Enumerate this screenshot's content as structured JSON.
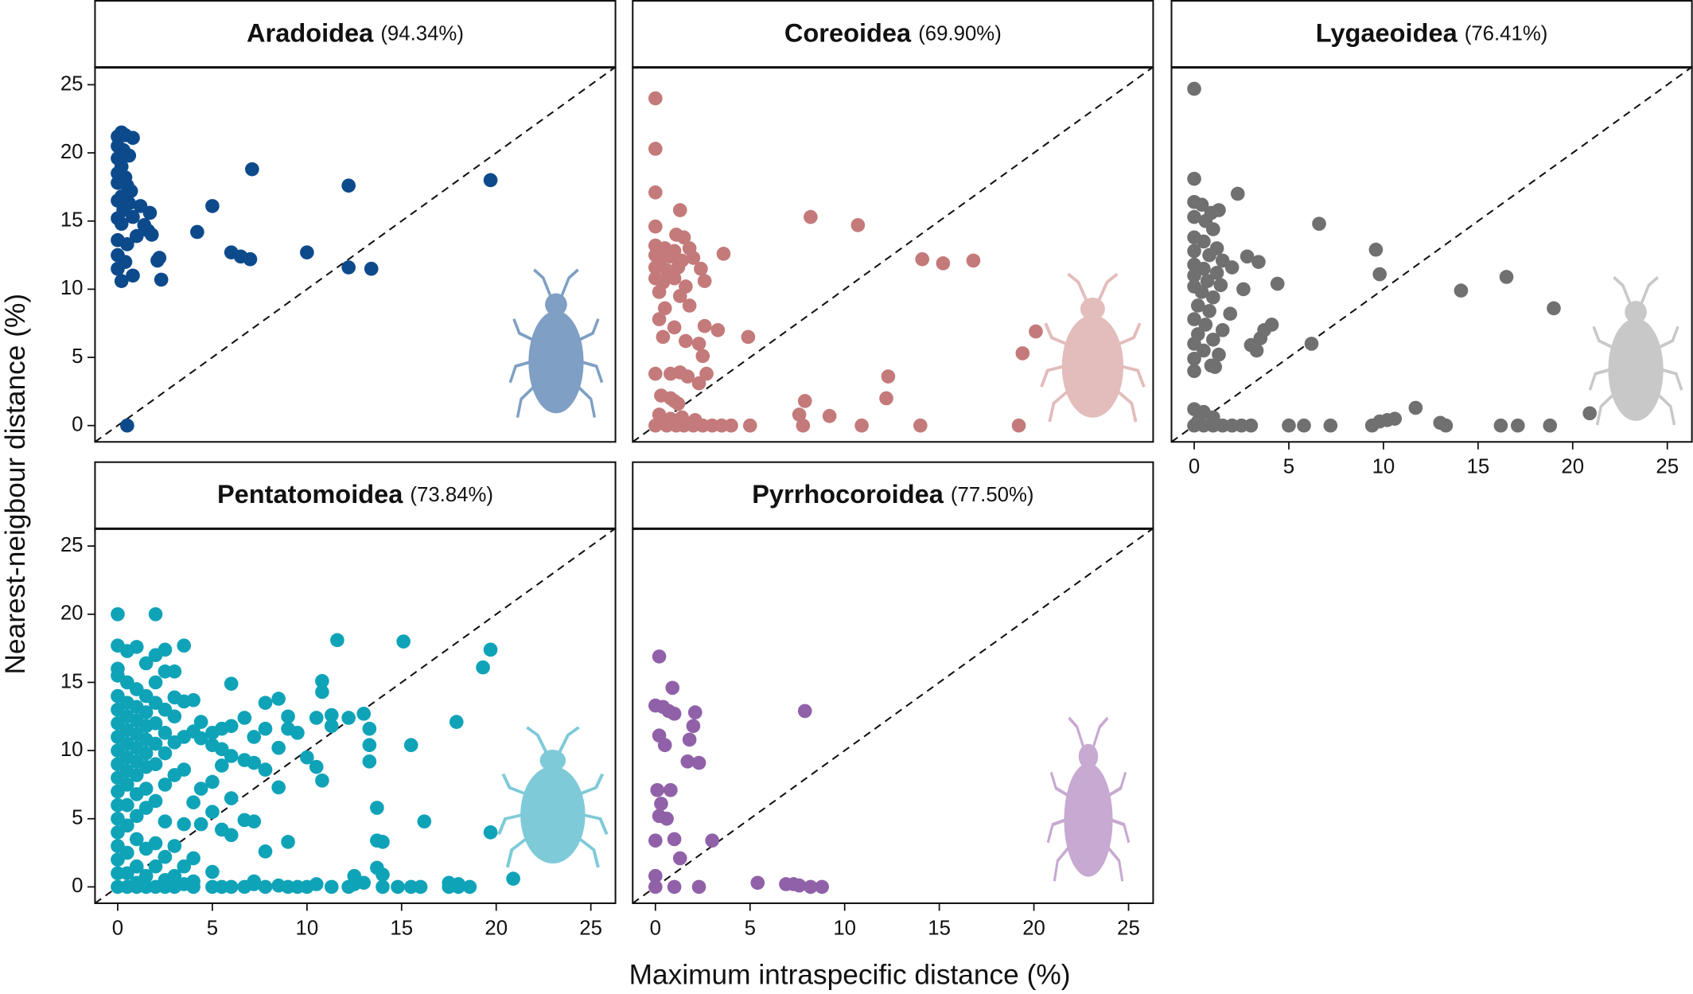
{
  "x_label": "Maximum intraspecific distance (%)",
  "y_label": "Nearest-neigbour distance (%)",
  "chart_data": [
    {
      "type": "scatter",
      "title": "Aradoidea",
      "subtitle": "(94.34%)",
      "color": "#0d4a8c",
      "xlim": [
        -1.2,
        26.3
      ],
      "ylim": [
        -1.2,
        26.3
      ],
      "yticks": [
        0,
        5,
        10,
        15,
        20,
        25
      ],
      "x": [
        0,
        0.2,
        0.4,
        0.8,
        0,
        0.3,
        0,
        0.6,
        0.2,
        0,
        0.4,
        0,
        0.5,
        0.7,
        0.2,
        0,
        0.6,
        1.2,
        0.3,
        1.7,
        0,
        0.8,
        1.4,
        1.6,
        0.2,
        1.0,
        0,
        0.5,
        1.8,
        0,
        0.4,
        2.2,
        2.1,
        0,
        0.8,
        0.2,
        2.3,
        4.2,
        5.0,
        6.0,
        6.5,
        7.0,
        7.1,
        10.0,
        12.2,
        12.2,
        13.4,
        19.7,
        0.5
      ],
      "values": [
        21.2,
        21.5,
        21.3,
        21.1,
        20.5,
        20.2,
        19.6,
        19.8,
        19.0,
        18.5,
        18.2,
        17.8,
        17.6,
        17.2,
        16.8,
        16.5,
        16.3,
        16.1,
        15.8,
        15.6,
        15.2,
        15.3,
        14.7,
        14.3,
        14.8,
        13.9,
        13.6,
        13.3,
        14.0,
        12.5,
        12.0,
        12.3,
        12.1,
        11.5,
        11.0,
        10.6,
        10.7,
        14.2,
        16.1,
        12.7,
        12.4,
        12.2,
        18.8,
        12.7,
        17.6,
        11.6,
        11.5,
        18.0,
        0
      ]
    },
    {
      "type": "scatter",
      "title": "Coreoidea",
      "subtitle": "(69.90%)",
      "color": "#c47a7a",
      "xlim": [
        -1.2,
        26.3
      ],
      "ylim": [
        -1.2,
        26.3
      ],
      "x": [
        0,
        0,
        0,
        1.3,
        0,
        1.1,
        1.5,
        0,
        0.5,
        1.0,
        1.8,
        0,
        0.3,
        0.8,
        1.4,
        2.0,
        3.6,
        0,
        0.6,
        1.2,
        2.4,
        0,
        0.4,
        1.0,
        1.6,
        2.6,
        0.2,
        1.3,
        0.5,
        1.8,
        0.2,
        1.0,
        2.6,
        0.4,
        1.6,
        3.3,
        2.3,
        4.9,
        2.5,
        0,
        0.8,
        1.3,
        1.7,
        2.3,
        2.7,
        0.3,
        0.8,
        1.0,
        1.2,
        0.2,
        0.8,
        1.4,
        2.1,
        0,
        0.6,
        1.1,
        1.5,
        2.0,
        2.5,
        3.0,
        3.5,
        4.0,
        5.0,
        7.6,
        7.9,
        7.8,
        9.2,
        10.9,
        12.2,
        12.3,
        14.0,
        8.2,
        10.7,
        14.1,
        15.2,
        16.8,
        19.4,
        20.1,
        19.2
      ],
      "values": [
        24.0,
        20.3,
        17.1,
        15.8,
        14.6,
        14.0,
        13.8,
        13.2,
        13.0,
        12.8,
        13.0,
        12.5,
        12.2,
        12.4,
        12.1,
        12.3,
        12.6,
        11.6,
        11.4,
        11.6,
        11.5,
        10.8,
        10.5,
        10.8,
        10.2,
        10.6,
        9.8,
        9.5,
        8.6,
        8.8,
        7.8,
        7.2,
        7.3,
        6.5,
        6.2,
        7.0,
        6.0,
        6.5,
        5.1,
        3.8,
        3.8,
        3.9,
        3.6,
        3.1,
        3.8,
        2.2,
        2.0,
        1.8,
        1.6,
        0.8,
        0.5,
        0.6,
        0.4,
        0,
        0,
        0,
        0,
        0,
        0,
        0,
        0,
        0,
        0,
        0.8,
        1.8,
        0,
        0.7,
        0,
        2.0,
        3.6,
        0,
        15.3,
        14.7,
        12.2,
        11.9,
        12.1,
        5.3,
        6.9,
        0
      ]
    },
    {
      "type": "scatter",
      "title": "Lygaeoidea",
      "subtitle": "(76.41%)",
      "color": "#707070",
      "xlim": [
        -1.2,
        26.3
      ],
      "ylim": [
        -1.2,
        26.3
      ],
      "xticks": [
        0,
        5,
        10,
        15,
        20,
        25
      ],
      "x": [
        0,
        0,
        0,
        0.4,
        0.9,
        1.3,
        2.3,
        0,
        0.6,
        1.0,
        0,
        0.5,
        1.2,
        0,
        0.8,
        1.5,
        2.0,
        2.8,
        3.4,
        0,
        0.5,
        1.2,
        0,
        0.7,
        1.4,
        2.6,
        0,
        0.4,
        1.0,
        0.2,
        0.8,
        1.9,
        0,
        0.6,
        1.5,
        0.2,
        1.0,
        0,
        0.5,
        1.3,
        0,
        0.9,
        0,
        1.1,
        4.4,
        3.7,
        4.1,
        3.5,
        3.0,
        3.3,
        6.2,
        6.6,
        9.6,
        9.8,
        14.1,
        16.5,
        19.0,
        0,
        0.5,
        1.0,
        0.2,
        0,
        0.5,
        1,
        1.5,
        2,
        2.5,
        3,
        5,
        5.8,
        7.2,
        9.4,
        9.8,
        10.2,
        10.6,
        11.7,
        13.0,
        13.3,
        16.2,
        17.1,
        18.8,
        20.9
      ],
      "values": [
        24.7,
        18.1,
        16.4,
        16.2,
        15.6,
        15.8,
        17.0,
        15.3,
        15.0,
        14.4,
        13.8,
        13.5,
        13.0,
        12.8,
        12.5,
        12.1,
        11.6,
        12.4,
        12.0,
        11.8,
        11.5,
        11.2,
        11.0,
        10.6,
        10.3,
        10.0,
        10.2,
        9.8,
        9.4,
        8.8,
        8.4,
        8.2,
        7.8,
        7.4,
        7.0,
        6.7,
        6.3,
        6.0,
        5.5,
        5.2,
        4.9,
        4.4,
        4.0,
        4.3,
        10.4,
        7.0,
        7.4,
        6.4,
        5.9,
        5.5,
        6.0,
        14.8,
        12.9,
        11.1,
        9.9,
        10.9,
        8.6,
        1.2,
        1.0,
        0.6,
        0.3,
        0,
        0,
        0,
        0,
        0,
        0,
        0,
        0,
        0,
        0,
        0,
        0.3,
        0.4,
        0.5,
        1.3,
        0.2,
        0,
        0,
        0,
        0,
        0.9
      ]
    },
    {
      "type": "scatter",
      "title": "Pentatomoidea",
      "subtitle": "(73.84%)",
      "color": "#0fa3b8",
      "xlim": [
        -1.2,
        26.3
      ],
      "ylim": [
        -1.2,
        26.3
      ],
      "xticks": [
        0,
        5,
        10,
        15,
        20,
        25
      ],
      "yticks": [
        0,
        5,
        10,
        15,
        20,
        25
      ],
      "x": [
        0,
        0,
        0,
        0,
        0,
        0,
        0,
        0,
        0,
        0,
        0,
        0,
        0,
        0,
        0,
        0,
        0,
        0,
        0,
        0.5,
        0.5,
        0.5,
        0.5,
        0.5,
        0.5,
        0.5,
        0.5,
        0.5,
        0.5,
        0.5,
        0.5,
        0.5,
        0.5,
        1,
        1,
        1,
        1,
        1,
        1,
        1,
        1,
        1,
        1,
        1,
        1,
        1,
        1,
        1.5,
        1.5,
        1.5,
        1.5,
        1.5,
        1.5,
        1.5,
        1.5,
        1.5,
        1.5,
        1.5,
        1.5,
        2,
        2,
        2,
        2,
        2,
        2,
        2,
        2,
        2,
        2,
        2,
        2.5,
        2.5,
        2.5,
        2.5,
        2.5,
        2.5,
        2.5,
        2.5,
        2.5,
        2.5,
        3,
        3,
        3,
        3,
        3,
        3,
        3,
        3,
        3.5,
        3.5,
        3.5,
        3.5,
        3.5,
        3.5,
        3.5,
        4,
        4,
        4,
        4,
        4,
        4,
        4.4,
        4.4,
        4.4,
        4.4,
        5,
        5,
        5,
        5,
        5,
        5,
        5.5,
        5.5,
        5.5,
        5.5,
        5.5,
        6,
        6,
        6,
        6,
        6,
        6,
        6.7,
        6.7,
        6.7,
        6.7,
        7.2,
        7.2,
        7.2,
        7.2,
        7.2,
        7.8,
        7.8,
        7.8,
        7.8,
        7.8,
        8.5,
        8.5,
        8.5,
        8.5,
        9,
        9,
        9,
        9,
        9.5,
        9.5,
        10,
        10,
        10.5,
        10.5,
        10.5,
        10.8,
        10.8,
        10.8,
        11.3,
        11.3,
        11.3,
        11.6,
        12.2,
        12.2,
        12.5,
        12.5,
        13,
        13,
        13.3,
        13.3,
        13.3,
        13.7,
        13.7,
        13.7,
        14,
        14,
        14,
        14.8,
        15.1,
        15.5,
        15.5,
        16,
        16.2,
        17.5,
        17.5,
        17.9,
        18,
        18,
        18.6,
        19.3,
        19.7,
        19.7,
        20.9
      ],
      "values": [
        20,
        17.7,
        16,
        15.5,
        14,
        13,
        12,
        11,
        10,
        9,
        8,
        7,
        6,
        5,
        4,
        3,
        2,
        1,
        0,
        17.3,
        15,
        13.5,
        12.5,
        11.5,
        10.5,
        9.5,
        8.5,
        7.5,
        6,
        4.5,
        2.5,
        1,
        0,
        17.6,
        14.5,
        13.2,
        12.2,
        11.2,
        10.2,
        9.2,
        8.2,
        6.8,
        5.2,
        3.5,
        1.5,
        0.3,
        0,
        16.4,
        14,
        12.8,
        11.8,
        10.8,
        9.8,
        8.8,
        7.2,
        5.8,
        2.8,
        0.8,
        0,
        20,
        17,
        15,
        13.5,
        12,
        10.5,
        9,
        6.3,
        3.2,
        1.5,
        0,
        17.4,
        15.8,
        13,
        11.3,
        9.8,
        7.5,
        4.8,
        2.2,
        0.5,
        0,
        15.8,
        13.9,
        12.5,
        10.6,
        8.2,
        3,
        0.8,
        0,
        17.7,
        13.6,
        11,
        8.6,
        4.6,
        1.5,
        0.2,
        13.7,
        11.4,
        6.2,
        2.1,
        0.4,
        0,
        12.1,
        10.9,
        7.2,
        4.6,
        11.3,
        10.4,
        7.7,
        5.5,
        1.1,
        0,
        11.6,
        10.1,
        8.9,
        4.2,
        0,
        14.9,
        11.8,
        9.6,
        6.5,
        3.8,
        0,
        12.4,
        9.3,
        4.9,
        0,
        11,
        9.1,
        4.8,
        0.4,
        0.2,
        13.5,
        11.6,
        8.6,
        2.6,
        0,
        13.8,
        10.2,
        7.3,
        0.1,
        12.5,
        11.6,
        3.3,
        0,
        11.3,
        0,
        9.5,
        0,
        12.4,
        8.8,
        0.2,
        15.1,
        14.3,
        7.8,
        12.6,
        11.8,
        0,
        18.1,
        12.4,
        0,
        0.8,
        0.2,
        12.7,
        0.3,
        11.6,
        10.4,
        9.2,
        5.8,
        3.4,
        1.4,
        3.3,
        0.9,
        0,
        0,
        18,
        10.4,
        0,
        0,
        4.8,
        0.3,
        0,
        12.1,
        0.2,
        0,
        0,
        16.1,
        17.4,
        4,
        0.6
      ]
    },
    {
      "type": "scatter",
      "title": "Pyrrhocoroidea",
      "subtitle": "(77.50%)",
      "color": "#9061a8",
      "xlim": [
        -1.2,
        26.3
      ],
      "ylim": [
        -1.2,
        26.3
      ],
      "xticks": [
        0,
        5,
        10,
        15,
        20,
        25
      ],
      "x": [
        0.2,
        0,
        0.4,
        0.7,
        1.0,
        0.9,
        2.1,
        2.0,
        0.2,
        0.5,
        1.8,
        1.7,
        2.3,
        0.1,
        0.8,
        0.3,
        0.2,
        0.6,
        0,
        1.0,
        3.0,
        1.3,
        0,
        0,
        1.0,
        2.3,
        5.4,
        6.9,
        7.3,
        7.6,
        8.2,
        8.8,
        7.9
      ],
      "values": [
        16.9,
        13.3,
        13.2,
        12.9,
        12.7,
        14.6,
        12.8,
        11.8,
        11.1,
        10.4,
        10.8,
        9.2,
        9.1,
        7.1,
        7.1,
        6.1,
        5.2,
        5.0,
        3.4,
        3.5,
        3.4,
        2.1,
        0.8,
        0,
        0,
        0,
        0.3,
        0.2,
        0.2,
        0.1,
        0,
        0,
        12.9
      ]
    }
  ]
}
